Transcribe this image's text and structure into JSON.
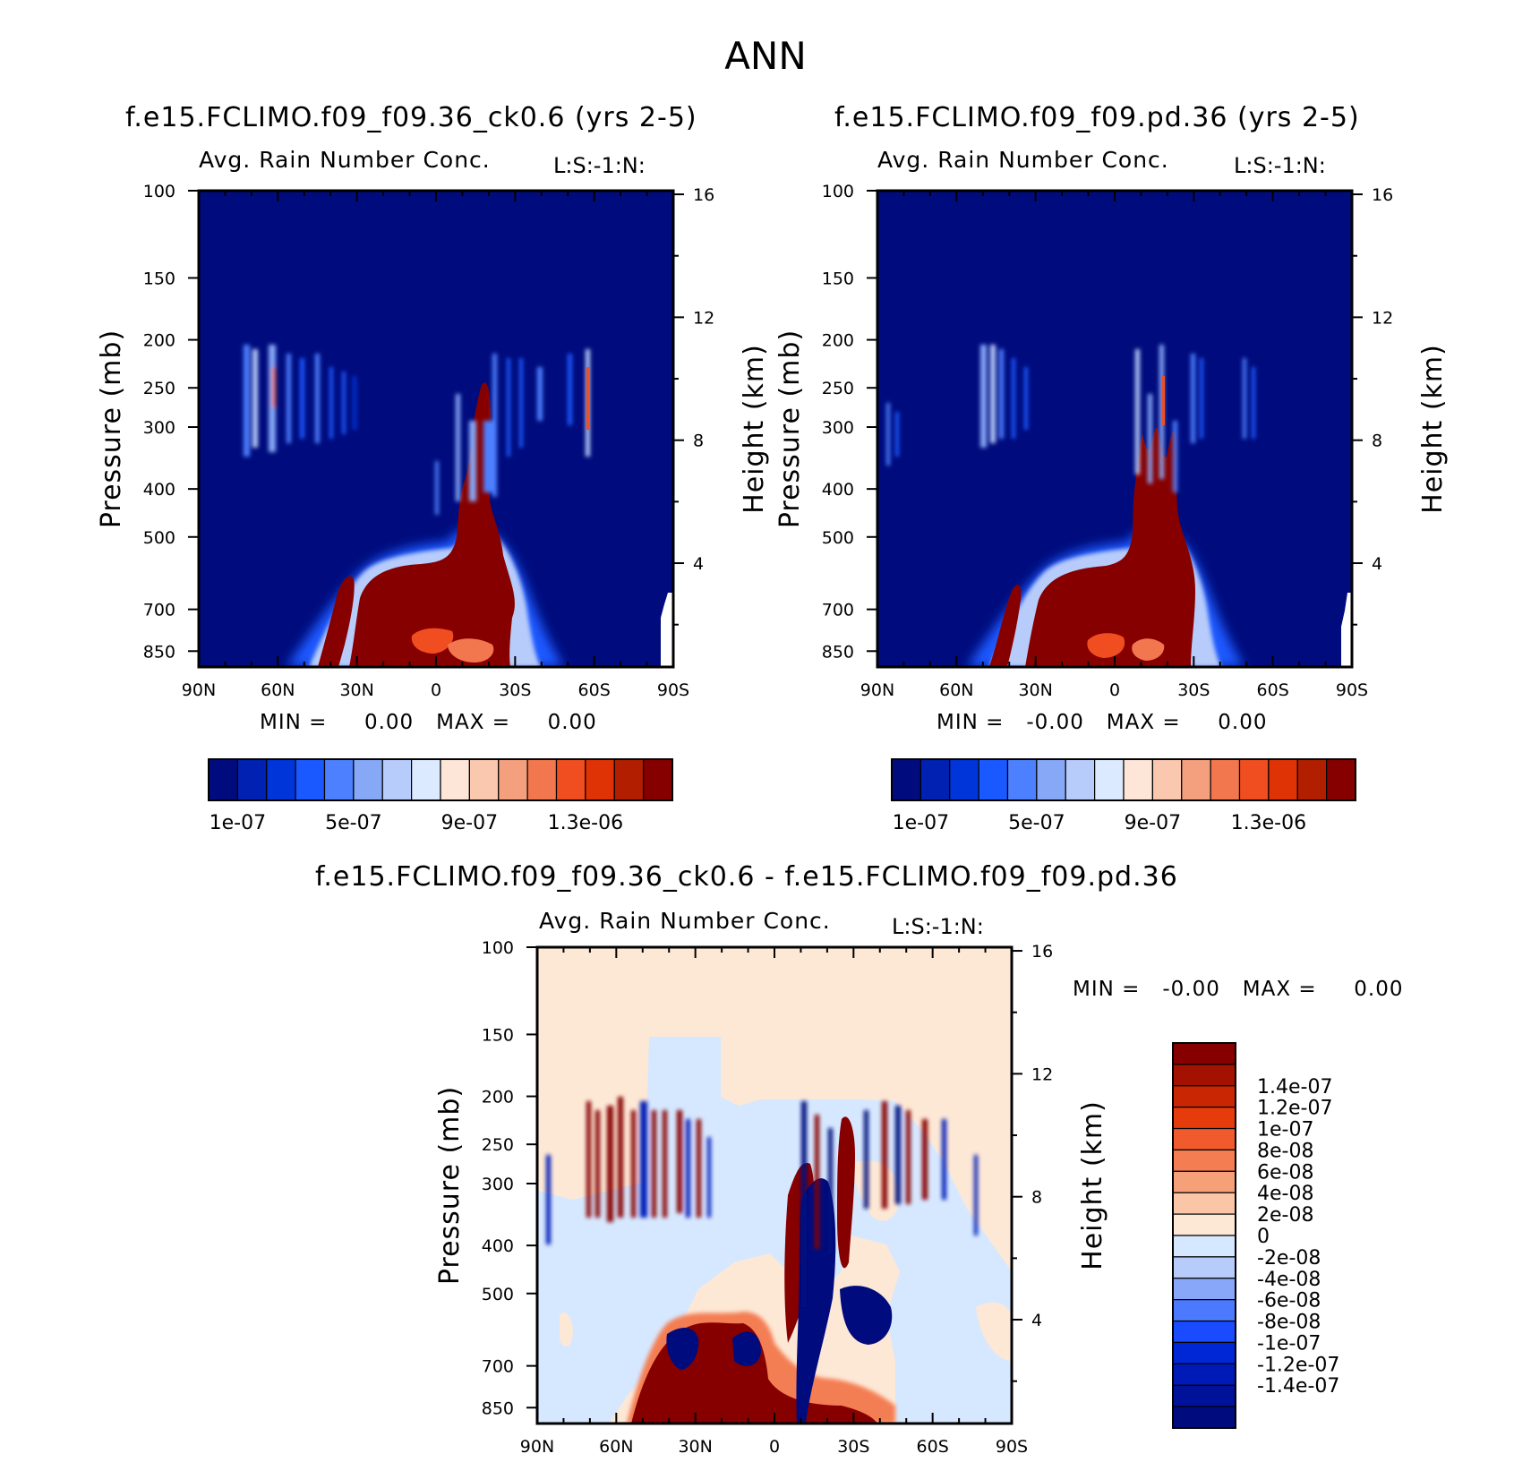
{
  "main_title": "ANN",
  "colors": {
    "seq": [
      "#000c7d",
      "#0021b2",
      "#0036d9",
      "#1a59ff",
      "#4d80ff",
      "#86a8f7",
      "#b7ccfb",
      "#dceaff",
      "#fde6d7",
      "#f9c8af",
      "#f4a07f",
      "#f2774f",
      "#f04e20",
      "#df3306",
      "#b21e00",
      "#870000"
    ],
    "div": [
      "#000c7d",
      "#00129a",
      "#001ab8",
      "#0027d5",
      "#1a4bff",
      "#4c7aff",
      "#88a7f8",
      "#b7ccfb",
      "#d6e8ff",
      "#fde8d6",
      "#fbc6a8",
      "#f6a079",
      "#f47e52",
      "#f05a2c",
      "#e63c0c",
      "#c92604",
      "#a31100",
      "#870000"
    ]
  },
  "panels": {
    "left": {
      "title": "f.e15.FCLIMO.f09_f09.36_ck0.6 (yrs 2-5)",
      "subtitle_left": "Avg. Rain Number Conc.",
      "subtitle_right": "L:S:-1:N:",
      "stats": "MIN =     0.00   MAX =     0.00"
    },
    "right": {
      "title": "f.e15.FCLIMO.f09_f09.pd.36 (yrs 2-5)",
      "subtitle_left": "Avg. Rain Number Conc.",
      "subtitle_right": "L:S:-1:N:",
      "stats": "MIN =   -0.00   MAX =     0.00"
    },
    "diff": {
      "title": "f.e15.FCLIMO.f09_f09.36_ck0.6 - f.e15.FCLIMO.f09_f09.pd.36",
      "subtitle_left": "Avg. Rain Number Conc.",
      "subtitle_right": "L:S:-1:N:",
      "stats": "MIN =   -0.00   MAX =     0.00"
    }
  },
  "chart_data": [
    {
      "type": "heatmap",
      "title": "f.e15.FCLIMO.f09_f09.36_ck0.6 (yrs 2-5)",
      "ylabel": "Pressure (mb)",
      "y2label": "Height (km)",
      "x_ticks": [
        "90N",
        "60N",
        "30N",
        "0",
        "30S",
        "60S",
        "90S"
      ],
      "y_ticks": [
        "100",
        "150",
        "200",
        "250",
        "300",
        "400",
        "500",
        "700",
        "850"
      ],
      "y2_ticks": [
        "16",
        "12",
        "8",
        "4"
      ],
      "colorbar_labels": [
        "1e-07",
        "5e-07",
        "9e-07",
        "1.3e-06"
      ]
    },
    {
      "type": "heatmap",
      "title": "f.e15.FCLIMO.f09_f09.pd.36 (yrs 2-5)",
      "ylabel": "Pressure (mb)",
      "y2label": "Height (km)",
      "x_ticks": [
        "90N",
        "60N",
        "30N",
        "0",
        "30S",
        "60S",
        "90S"
      ],
      "y_ticks": [
        "100",
        "150",
        "200",
        "250",
        "300",
        "400",
        "500",
        "700",
        "850"
      ],
      "y2_ticks": [
        "16",
        "12",
        "8",
        "4"
      ],
      "colorbar_labels": [
        "1e-07",
        "5e-07",
        "9e-07",
        "1.3e-06"
      ]
    },
    {
      "type": "heatmap",
      "title": "f.e15.FCLIMO.f09_f09.36_ck0.6 - f.e15.FCLIMO.f09_f09.pd.36",
      "ylabel": "Pressure (mb)",
      "y2label": "Height (km)",
      "x_ticks": [
        "90N",
        "60N",
        "30N",
        "0",
        "30S",
        "60S",
        "90S"
      ],
      "y_ticks": [
        "100",
        "150",
        "200",
        "250",
        "300",
        "400",
        "500",
        "700",
        "850"
      ],
      "y2_ticks": [
        "16",
        "12",
        "8",
        "4"
      ],
      "colorbar_labels": [
        "1.4e-07",
        "1.2e-07",
        "1e-07",
        "8e-08",
        "6e-08",
        "4e-08",
        "2e-08",
        "0",
        "-2e-08",
        "-4e-08",
        "-6e-08",
        "-8e-08",
        "-1e-07",
        "-1.2e-07",
        "-1.4e-07"
      ]
    }
  ]
}
